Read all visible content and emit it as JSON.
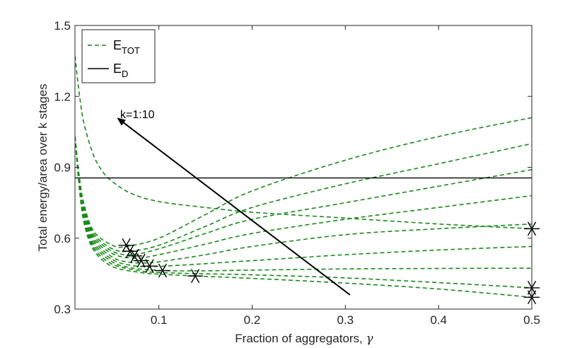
{
  "chart_data": {
    "type": "line",
    "title": "",
    "xlabel": "Fraction of aggregators, ",
    "xlabel_symbol": "γ",
    "ylabel": "Total energy/area over k stages",
    "xlim": [
      0.01,
      0.5
    ],
    "ylim": [
      0.3,
      1.5
    ],
    "xticks": [
      0.1,
      0.2,
      0.3,
      0.4,
      0.5
    ],
    "xtick_labels": [
      "0.1",
      "0.2",
      "0.3",
      "0.4",
      "0.5"
    ],
    "yticks": [
      0.3,
      0.6,
      0.9,
      1.2,
      1.5
    ],
    "ytick_labels": [
      "0.3",
      "0.6",
      "0.9",
      "1.2",
      "1.5"
    ],
    "colors": {
      "etot": "#1a8a1a",
      "ed": "#000000",
      "axis": "#262626"
    },
    "legend": {
      "position": "top-left",
      "entries": [
        {
          "main": "E",
          "sub": "TOT",
          "style": "dashed-green"
        },
        {
          "main": "E",
          "sub": "D",
          "style": "solid-black"
        }
      ]
    },
    "ed_value": 0.855,
    "annotation": {
      "text": "k=1:10",
      "arrow_from": [
        0.305,
        0.36
      ],
      "arrow_to": [
        0.055,
        1.11
      ]
    },
    "series": [
      {
        "name": "k=1",
        "x": [
          0.01,
          0.015,
          0.02,
          0.03,
          0.04,
          0.05,
          0.07,
          0.1,
          0.15,
          0.2,
          0.3,
          0.4,
          0.5
        ],
        "y": [
          1.37,
          1.2,
          1.08,
          0.95,
          0.88,
          0.84,
          0.79,
          0.755,
          0.73,
          0.71,
          0.685,
          0.66,
          0.64
        ]
      },
      {
        "name": "k=2",
        "x": [
          0.01,
          0.015,
          0.02,
          0.03,
          0.05,
          0.08,
          0.1,
          0.14,
          0.2,
          0.3,
          0.4,
          0.5
        ],
        "y": [
          1.03,
          0.8,
          0.66,
          0.55,
          0.48,
          0.455,
          0.448,
          0.44,
          0.43,
          0.41,
          0.385,
          0.35
        ]
      },
      {
        "name": "k=3",
        "x": [
          0.01,
          0.015,
          0.02,
          0.03,
          0.05,
          0.08,
          0.1,
          0.14,
          0.2,
          0.3,
          0.4,
          0.5
        ],
        "y": [
          1.03,
          0.8,
          0.67,
          0.56,
          0.49,
          0.462,
          0.455,
          0.45,
          0.445,
          0.432,
          0.412,
          0.39
        ]
      },
      {
        "name": "k=4",
        "x": [
          0.01,
          0.015,
          0.02,
          0.03,
          0.05,
          0.07,
          0.104,
          0.15,
          0.2,
          0.3,
          0.4,
          0.5
        ],
        "y": [
          1.03,
          0.81,
          0.68,
          0.57,
          0.5,
          0.475,
          0.463,
          0.462,
          0.465,
          0.47,
          0.472,
          0.473
        ]
      },
      {
        "name": "k=5",
        "x": [
          0.01,
          0.015,
          0.02,
          0.03,
          0.05,
          0.07,
          0.09,
          0.12,
          0.2,
          0.3,
          0.4,
          0.5
        ],
        "y": [
          1.03,
          0.82,
          0.69,
          0.58,
          0.51,
          0.485,
          0.48,
          0.485,
          0.505,
          0.53,
          0.55,
          0.565
        ]
      },
      {
        "name": "k=6",
        "x": [
          0.01,
          0.015,
          0.02,
          0.03,
          0.05,
          0.065,
          0.081,
          0.1,
          0.15,
          0.2,
          0.3,
          0.4,
          0.5
        ],
        "y": [
          1.03,
          0.82,
          0.7,
          0.59,
          0.52,
          0.5,
          0.495,
          0.5,
          0.53,
          0.565,
          0.615,
          0.64,
          0.66
        ]
      },
      {
        "name": "k=7",
        "x": [
          0.01,
          0.015,
          0.02,
          0.03,
          0.05,
          0.074,
          0.1,
          0.15,
          0.2,
          0.3,
          0.4,
          0.5
        ],
        "y": [
          1.03,
          0.83,
          0.71,
          0.6,
          0.535,
          0.515,
          0.53,
          0.575,
          0.62,
          0.68,
          0.73,
          0.78
        ]
      },
      {
        "name": "k=8",
        "x": [
          0.01,
          0.015,
          0.02,
          0.03,
          0.05,
          0.07,
          0.1,
          0.15,
          0.2,
          0.3,
          0.4,
          0.5
        ],
        "y": [
          1.03,
          0.84,
          0.72,
          0.61,
          0.545,
          0.53,
          0.555,
          0.62,
          0.68,
          0.75,
          0.82,
          0.89
        ]
      },
      {
        "name": "k=9",
        "x": [
          0.01,
          0.015,
          0.02,
          0.03,
          0.05,
          0.069,
          0.1,
          0.15,
          0.2,
          0.3,
          0.4,
          0.5
        ],
        "y": [
          1.03,
          0.84,
          0.73,
          0.62,
          0.555,
          0.545,
          0.57,
          0.65,
          0.73,
          0.83,
          0.915,
          1.0
        ]
      },
      {
        "name": "k=10",
        "x": [
          0.01,
          0.015,
          0.02,
          0.03,
          0.05,
          0.065,
          0.1,
          0.15,
          0.2,
          0.3,
          0.4,
          0.5
        ],
        "y": [
          1.03,
          0.85,
          0.74,
          0.63,
          0.57,
          0.565,
          0.6,
          0.7,
          0.8,
          0.93,
          1.03,
          1.11
        ]
      }
    ],
    "markers": [
      {
        "x": 0.065,
        "y": 0.57
      },
      {
        "x": 0.069,
        "y": 0.545
      },
      {
        "x": 0.074,
        "y": 0.525
      },
      {
        "x": 0.081,
        "y": 0.505
      },
      {
        "x": 0.09,
        "y": 0.482
      },
      {
        "x": 0.104,
        "y": 0.463
      },
      {
        "x": 0.139,
        "y": 0.44
      },
      {
        "x": 0.5,
        "y": 0.64
      },
      {
        "x": 0.5,
        "y": 0.39
      },
      {
        "x": 0.5,
        "y": 0.35
      }
    ]
  }
}
